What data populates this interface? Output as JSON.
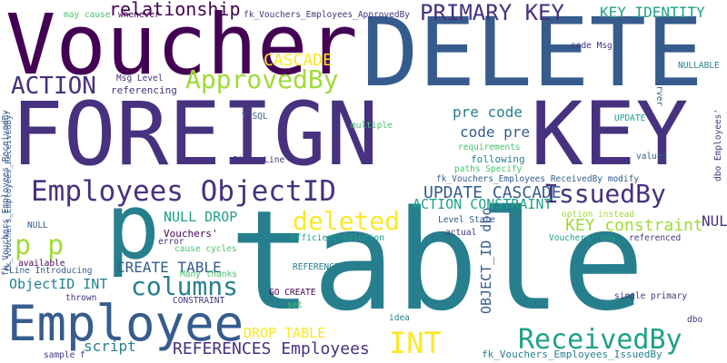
{
  "background": "#ffffff",
  "palette": [
    "#440154",
    "#46327e",
    "#365c8d",
    "#277f8e",
    "#1fa187",
    "#4ac16d",
    "#a0da39",
    "#fde725"
  ],
  "words": [
    {
      "text": "table",
      "color": "#277f8e"
    },
    {
      "text": "FOREIGN",
      "color": "#46327e"
    },
    {
      "text": "KEY",
      "color": "#46327e"
    },
    {
      "text": "DELETE",
      "color": "#365c8d"
    },
    {
      "text": "Voucher",
      "color": "#440154"
    },
    {
      "text": "Employee",
      "color": "#365c8d"
    },
    {
      "text": "p",
      "color": "#277f8e"
    },
    {
      "text": "Employees ObjectID",
      "color": "#46327e"
    },
    {
      "text": "PRIMARY KEY",
      "color": "#46327e"
    },
    {
      "text": "ReceivedBy",
      "color": "#1fa187"
    },
    {
      "text": "ApprovedBy",
      "color": "#a0da39"
    },
    {
      "text": "IssuedBy",
      "color": "#46327e"
    },
    {
      "text": "deleted",
      "color": "#fde725"
    },
    {
      "text": "columns",
      "color": "#277f8e"
    },
    {
      "text": "p p",
      "color": "#a0da39"
    },
    {
      "text": "INT",
      "color": "#fde725"
    },
    {
      "text": "ACTION",
      "color": "#46327e"
    },
    {
      "text": "relationship",
      "color": "#440154"
    },
    {
      "text": "KEY IDENTITY",
      "color": "#1fa187"
    },
    {
      "text": "CASCADE",
      "color": "#fde725"
    },
    {
      "text": "UPDATE CASCADE",
      "color": "#365c8d"
    },
    {
      "text": "REFERENCES Employees",
      "color": "#46327e"
    },
    {
      "text": "CREATE TABLE",
      "color": "#365c8d"
    },
    {
      "text": "ObjectID INT",
      "color": "#277f8e"
    },
    {
      "text": "NULL PRIMARY",
      "color": "#46327e"
    },
    {
      "text": "pre code",
      "color": "#277f8e"
    },
    {
      "text": "code pre",
      "color": "#365c8d"
    },
    {
      "text": "ACTION CONSTRAINT",
      "color": "#1fa187"
    },
    {
      "text": "KEY constraint",
      "color": "#a0da39"
    },
    {
      "text": "NULL DROP",
      "color": "#1fa187"
    },
    {
      "text": "script",
      "color": "#277f8e"
    },
    {
      "text": "DROP TABLE",
      "color": "#fde725"
    },
    {
      "text": "OBJECT_ID dbo",
      "color": "#365c8d"
    },
    {
      "text": "fk_Vouchers_Employees_IssuedBy",
      "color": "#277f8e"
    },
    {
      "text": "fk_Vouchers_Employees_ApprovedBy",
      "color": "#46327e"
    },
    {
      "text": "fk_Vouchers_Employees_ReceivedBy",
      "color": "#365c8d"
    },
    {
      "text": "fk_Vouchers_Employees_ReceivedBy modify",
      "color": "#365c8d"
    },
    {
      "text": "Msg Level",
      "color": "#46327e"
    },
    {
      "text": "referencing",
      "color": "#46327e"
    },
    {
      "text": "may cause",
      "color": "#4ac16d"
    },
    {
      "text": "whenever",
      "color": "#440154"
    },
    {
      "text": "code Msg",
      "color": "#46327e"
    },
    {
      "text": "NULLABLE",
      "color": "#277f8e"
    },
    {
      "text": "SQL Server",
      "color": "#365c8d"
    },
    {
      "text": "dbo Employees'",
      "color": "#46327e"
    },
    {
      "text": "T SQL",
      "color": "#365c8d"
    },
    {
      "text": "multiple",
      "color": "#4ac16d"
    },
    {
      "text": "UPDATE",
      "color": "#1fa187"
    },
    {
      "text": "requirements",
      "color": "#4ac16d"
    },
    {
      "text": "following",
      "color": "#277f8e"
    },
    {
      "text": "paths Specify",
      "color": "#4ac16d"
    },
    {
      "text": "values",
      "color": "#365c8d"
    },
    {
      "text": "State Line",
      "color": "#46327e"
    },
    {
      "text": "option instead",
      "color": "#a0da39"
    },
    {
      "text": "Level State",
      "color": "#365c8d"
    },
    {
      "text": "actual",
      "color": "#46327e"
    },
    {
      "text": "Vouchers' may",
      "color": "#1fa187"
    },
    {
      "text": "referenced",
      "color": "#46327e"
    },
    {
      "text": "efficient solution",
      "color": "#1fa187"
    },
    {
      "text": "Vouchers'",
      "color": "#440154"
    },
    {
      "text": "error",
      "color": "#46327e"
    },
    {
      "text": "cause cycles",
      "color": "#4ac16d"
    },
    {
      "text": "NULL",
      "color": "#365c8d"
    },
    {
      "text": "available",
      "color": "#440154"
    },
    {
      "text": "Line Introducing",
      "color": "#365c8d"
    },
    {
      "text": "REFERENCES",
      "color": "#277f8e"
    },
    {
      "text": "Many thanks",
      "color": "#4ac16d"
    },
    {
      "text": "GO CREATE",
      "color": "#440154"
    },
    {
      "text": "thrown",
      "color": "#46327e"
    },
    {
      "text": "CONSTRAINT",
      "color": "#46327e"
    },
    {
      "text": "set",
      "color": "#4ac16d"
    },
    {
      "text": "idea",
      "color": "#277f8e"
    },
    {
      "text": "single primary",
      "color": "#46327e"
    },
    {
      "text": "dbo",
      "color": "#46327e"
    },
    {
      "text": "sample f",
      "color": "#46327e"
    },
    {
      "text": "fk_Vouchers_Employees_ReceivedBy'",
      "color": "#365c8d"
    }
  ]
}
